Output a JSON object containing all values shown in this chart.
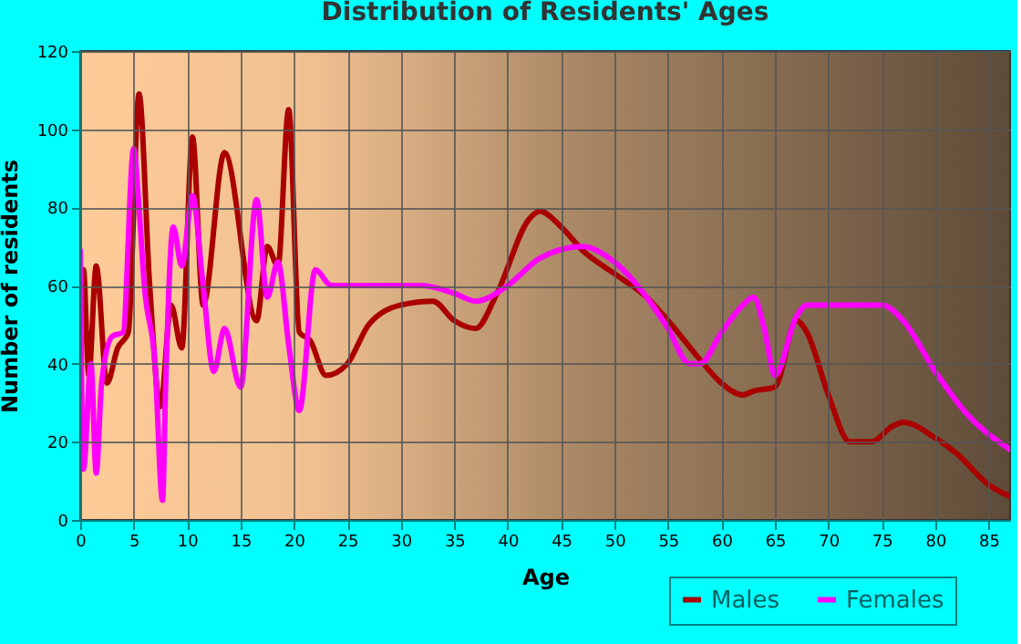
{
  "chart_data": {
    "type": "line",
    "title": "Distribution of Residents' Ages",
    "xlabel": "Age",
    "ylabel": "Number of residents",
    "xlim": [
      0,
      87
    ],
    "xticks": [
      0,
      5,
      10,
      15,
      20,
      25,
      30,
      35,
      40,
      45,
      50,
      55,
      60,
      65,
      70,
      75,
      80,
      85
    ],
    "ylim": [
      0,
      120
    ],
    "yticks": [
      0,
      20,
      40,
      60,
      80,
      100,
      120
    ],
    "grid": true,
    "legend": "bottom right",
    "line_style": "solid",
    "marker": "none",
    "series": [
      {
        "name": "Males",
        "color": "#aa0000",
        "x": [
          0,
          0.3,
          0.8,
          1.5,
          2.5,
          3.5,
          4.5,
          5.5,
          6.5,
          7.5,
          8.5,
          9.5,
          10.5,
          11.5,
          13.5,
          16.5,
          17.5,
          18.5,
          19.5,
          20.5,
          21.5,
          23,
          25,
          27,
          30,
          33,
          35,
          37,
          39,
          42,
          43,
          45,
          47,
          50,
          53,
          55,
          58,
          60,
          62,
          63,
          65,
          67,
          68,
          70,
          72,
          74,
          76,
          77,
          80,
          82,
          85,
          87
        ],
        "values": [
          56,
          64,
          37,
          65,
          35,
          44,
          48,
          109,
          60,
          29,
          55,
          44,
          98,
          55,
          94,
          51,
          70,
          65,
          105,
          48,
          46,
          37,
          40,
          50,
          55,
          56,
          51,
          49,
          58,
          77,
          79,
          75,
          69,
          63,
          57,
          51,
          41,
          35,
          32,
          33,
          34,
          51,
          48,
          32,
          20,
          20,
          24,
          25,
          21,
          17,
          9,
          6
        ]
      },
      {
        "name": "Females",
        "color": "#ff00ff",
        "x": [
          0,
          0.3,
          1,
          1.5,
          2,
          3,
          4,
          5,
          5.5,
          6,
          7,
          7.7,
          8,
          8.7,
          9.5,
          10.5,
          11.5,
          12.5,
          13.5,
          15,
          16.5,
          17.5,
          18.5,
          19.5,
          20.5,
          22,
          23.5,
          27,
          32,
          35,
          37,
          40,
          43,
          47,
          50,
          53,
          55,
          57,
          58,
          60,
          62,
          63,
          64,
          65,
          67,
          68,
          72,
          75,
          77,
          80,
          83,
          87
        ],
        "values": [
          69,
          13,
          40,
          12,
          35,
          47,
          48,
          95,
          80,
          60,
          40,
          5,
          35,
          75,
          65,
          83,
          60,
          38,
          49,
          34,
          82,
          57,
          66,
          45,
          28,
          64,
          60,
          60,
          60,
          58,
          56,
          60,
          67,
          70,
          66,
          57,
          49,
          40,
          40,
          48,
          55,
          57,
          49,
          37,
          52,
          55,
          55,
          55,
          51,
          38,
          27,
          18
        ]
      }
    ]
  }
}
